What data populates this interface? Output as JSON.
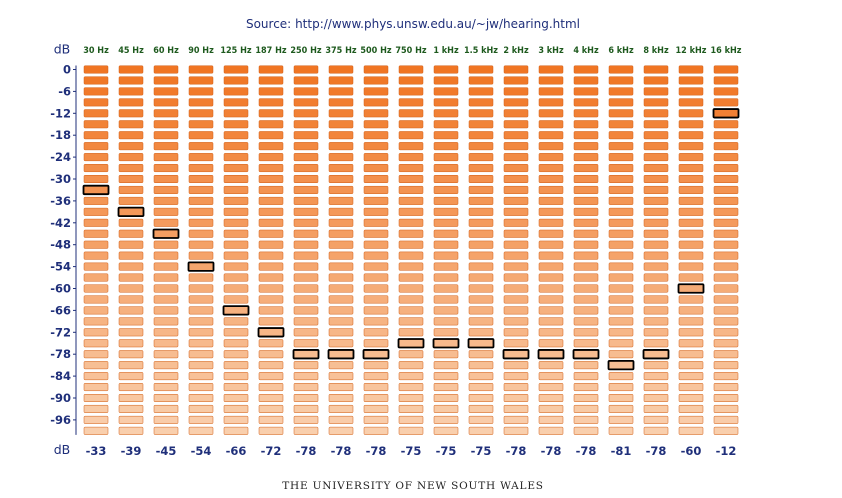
{
  "header": {
    "source_label": "Source:",
    "source_url": "http://www.phys.unsw.edu.au/~jw/hearing.html"
  },
  "footer": {
    "text": "THE UNIVERSITY OF NEW SOUTH WALES"
  },
  "chart_data": {
    "type": "table",
    "unit_label": "dB",
    "frequencies": [
      "30 Hz",
      "45 Hz",
      "60 Hz",
      "90 Hz",
      "125 Hz",
      "187 Hz",
      "250 Hz",
      "375 Hz",
      "500 Hz",
      "750 Hz",
      "1 kHz",
      "1.5 kHz",
      "2 kHz",
      "3 kHz",
      "4 kHz",
      "6 kHz",
      "8 kHz",
      "12 kHz",
      "16 kHz"
    ],
    "thresholds_db": [
      -33,
      -39,
      -45,
      -54,
      -66,
      -72,
      -78,
      -78,
      -78,
      -75,
      -75,
      -75,
      -78,
      -78,
      -78,
      -81,
      -78,
      -60,
      -12
    ],
    "y_ticks": [
      0,
      -6,
      -12,
      -18,
      -24,
      -30,
      -36,
      -42,
      -48,
      -54,
      -60,
      -66,
      -72,
      -78,
      -84,
      -90,
      -96
    ],
    "step_db": 3,
    "levels": 34,
    "colors": {
      "top": "#f07523",
      "bottom": "#f9cfad",
      "label": "#1f2f7a",
      "freq_label": "#1e5a1e"
    }
  }
}
